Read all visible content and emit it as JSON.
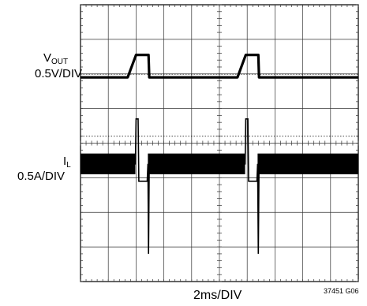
{
  "chart_data": {
    "type": "line",
    "title": "",
    "grid": true,
    "grid_divisions": {
      "horizontal": 10,
      "vertical": 8
    },
    "xlabel": "2ms/DIV",
    "x_unit": "ms",
    "xlim": [
      0,
      20
    ],
    "series": [
      {
        "name": "VOUT",
        "name_main": "V",
        "name_sub": "OUT",
        "scale": "0.5V/DIV",
        "y_unit": "div",
        "points": [
          [
            0,
            0
          ],
          [
            3.4,
            0
          ],
          [
            4.0,
            0.65
          ],
          [
            4.9,
            0.65
          ],
          [
            4.95,
            0
          ],
          [
            11.3,
            0
          ],
          [
            11.9,
            0.65
          ],
          [
            12.8,
            0.65
          ],
          [
            12.85,
            0
          ],
          [
            20,
            0
          ]
        ]
      },
      {
        "name": "IL",
        "name_main": "I",
        "name_sub": "L",
        "scale": "0.5A/DIV",
        "y_unit": "div",
        "points": [
          [
            0,
            0
          ],
          [
            3.95,
            0
          ],
          [
            4.0,
            1.3
          ],
          [
            4.15,
            1.3
          ],
          [
            4.2,
            -0.5
          ],
          [
            4.8,
            -0.5
          ],
          [
            4.85,
            0
          ],
          [
            4.9,
            -2.6
          ],
          [
            4.95,
            0
          ],
          [
            11.85,
            0
          ],
          [
            11.9,
            1.3
          ],
          [
            12.05,
            1.3
          ],
          [
            12.1,
            -0.5
          ],
          [
            12.7,
            -0.5
          ],
          [
            12.75,
            0
          ],
          [
            12.8,
            -2.6
          ],
          [
            12.85,
            0
          ],
          [
            20,
            0
          ]
        ],
        "ripple_band_div": [
          -0.3,
          0.3
        ]
      }
    ],
    "figure_id": "37451 G06"
  },
  "colors": {
    "trace": "#000000",
    "grid": "#333333",
    "background": "#ffffff"
  }
}
